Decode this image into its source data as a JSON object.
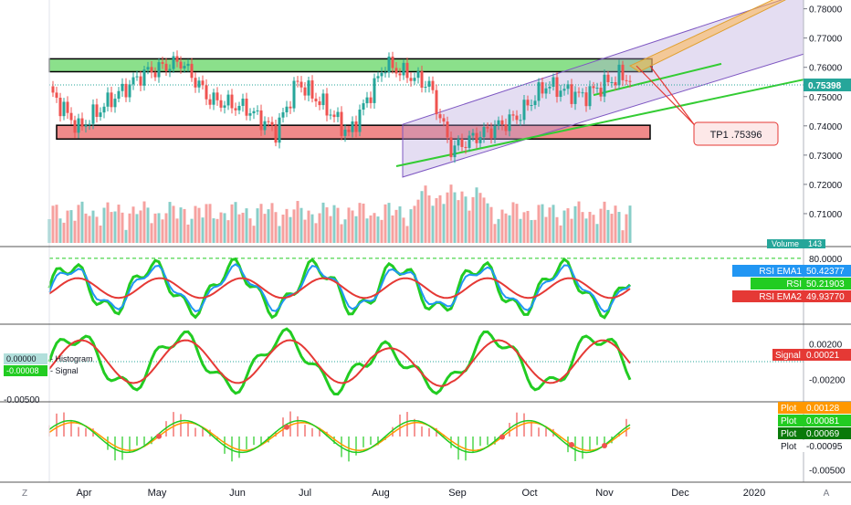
{
  "chart_data": {
    "type": "line",
    "x_labels": [
      "Apr",
      "May",
      "Jun",
      "Jul",
      "Aug",
      "Sep",
      "Oct",
      "Nov",
      "Dec",
      "2020"
    ],
    "price_pane": {
      "y_ticks": [
        "0.78000",
        "0.77000",
        "0.76000",
        "0.75000",
        "0.74000",
        "0.73000",
        "0.72000",
        "0.71000"
      ],
      "current_price": "0.75398",
      "annotation": "TP1 .75396",
      "volume_label": "Volume",
      "volume_value": "143",
      "ylim": [
        0.7,
        0.783
      ],
      "grid": false
    },
    "rsi_pane": {
      "y_ticks": [
        "80.0000"
      ],
      "labels": [
        {
          "name": "RSI EMA1",
          "value": "50.42377",
          "color": "#2196f3"
        },
        {
          "name": "RSI",
          "value": "50.21903",
          "color": "#22cc22"
        },
        {
          "name": "RSI EMA2",
          "value": "49.93770",
          "color": "#e53935"
        }
      ]
    },
    "macd_pane": {
      "y_ticks": [
        "0.00200",
        "-0.00200"
      ],
      "left_tick": "-0.00500",
      "left_labels": [
        {
          "value": "0.00000",
          "name": "Histogram"
        },
        {
          "value": "-0.00008",
          "name": "Signal"
        }
      ],
      "signal_label": "Signal",
      "signal_value": "0.00021"
    },
    "plot_pane": {
      "y_ticks": [
        "-0.00500"
      ],
      "labels": [
        {
          "name": "Plot",
          "value": "0.00128",
          "color": "#ff9800"
        },
        {
          "name": "Plot",
          "value": "0.00081",
          "color": "#22cc22"
        },
        {
          "name": "Plot",
          "value": "0.00069",
          "color": "#0a7a0a"
        },
        {
          "name": "Plot",
          "value": "-0.00095",
          "color": "#ffffff"
        }
      ]
    },
    "footer": {
      "left_icon": "Z",
      "right_icon": "A"
    },
    "colors": {
      "up": "#26a69a",
      "down": "#ef5350",
      "green_zone": "#8be08b",
      "red_zone": "#f08a8a",
      "channel": "#b39ddb",
      "trend": "#33cc33"
    }
  }
}
